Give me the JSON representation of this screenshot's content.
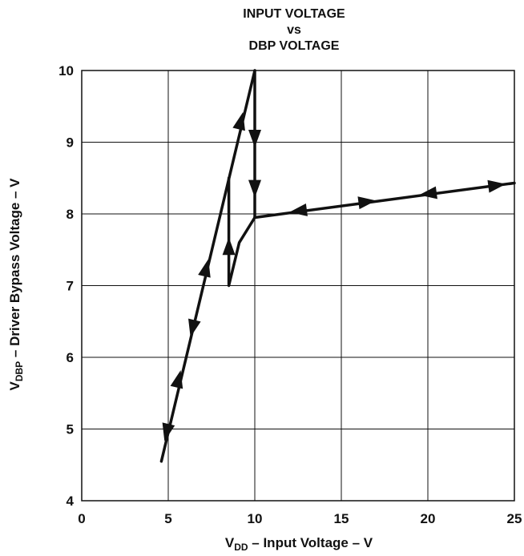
{
  "chart_data": {
    "type": "line",
    "title_lines": [
      "INPUT VOLTAGE",
      "vs",
      "DBP VOLTAGE"
    ],
    "xlabel": {
      "main": "V",
      "sub": "DD",
      "rest": " – Input Voltage – V"
    },
    "ylabel": {
      "main": "V",
      "sub": "DBP",
      "rest": " – Driver Bypass Voltage – V"
    },
    "xlim": [
      0,
      25
    ],
    "ylim": [
      4,
      10
    ],
    "xticks": [
      0,
      5,
      10,
      15,
      20,
      25
    ],
    "yticks": [
      4,
      5,
      6,
      7,
      8,
      9,
      10
    ],
    "grid": true,
    "series": [
      {
        "segment": "rising-branch",
        "points": [
          [
            4.6,
            4.55
          ],
          [
            10.0,
            10.0
          ]
        ]
      },
      {
        "segment": "drop-at-10V",
        "points": [
          [
            10.0,
            10.0
          ],
          [
            10.0,
            7.95
          ]
        ]
      },
      {
        "segment": "regulation-line",
        "points": [
          [
            10.0,
            7.95
          ],
          [
            25.0,
            8.43
          ]
        ]
      },
      {
        "segment": "falling-branch",
        "points": [
          [
            10.0,
            7.95
          ],
          [
            9.1,
            7.6
          ],
          [
            8.5,
            7.0
          ],
          [
            8.5,
            8.5
          ]
        ]
      }
    ],
    "arrows": [
      {
        "at": [
          4.9,
          4.95
        ],
        "direction": "down"
      },
      {
        "at": [
          5.6,
          5.7
        ],
        "direction": "up"
      },
      {
        "at": [
          6.4,
          6.4
        ],
        "direction": "down"
      },
      {
        "at": [
          7.2,
          7.25
        ],
        "direction": "up"
      },
      {
        "at": [
          9.2,
          9.3
        ],
        "direction": "up"
      },
      {
        "at": [
          10.0,
          9.05
        ],
        "direction": "down"
      },
      {
        "at": [
          10.0,
          8.35
        ],
        "direction": "down"
      },
      {
        "at": [
          8.5,
          7.55
        ],
        "direction": "up"
      },
      {
        "at": [
          12.5,
          8.04
        ],
        "direction": "left"
      },
      {
        "at": [
          16.5,
          8.17
        ],
        "direction": "right"
      },
      {
        "at": [
          20.0,
          8.28
        ],
        "direction": "left"
      },
      {
        "at": [
          24.0,
          8.4
        ],
        "direction": "right"
      }
    ]
  }
}
